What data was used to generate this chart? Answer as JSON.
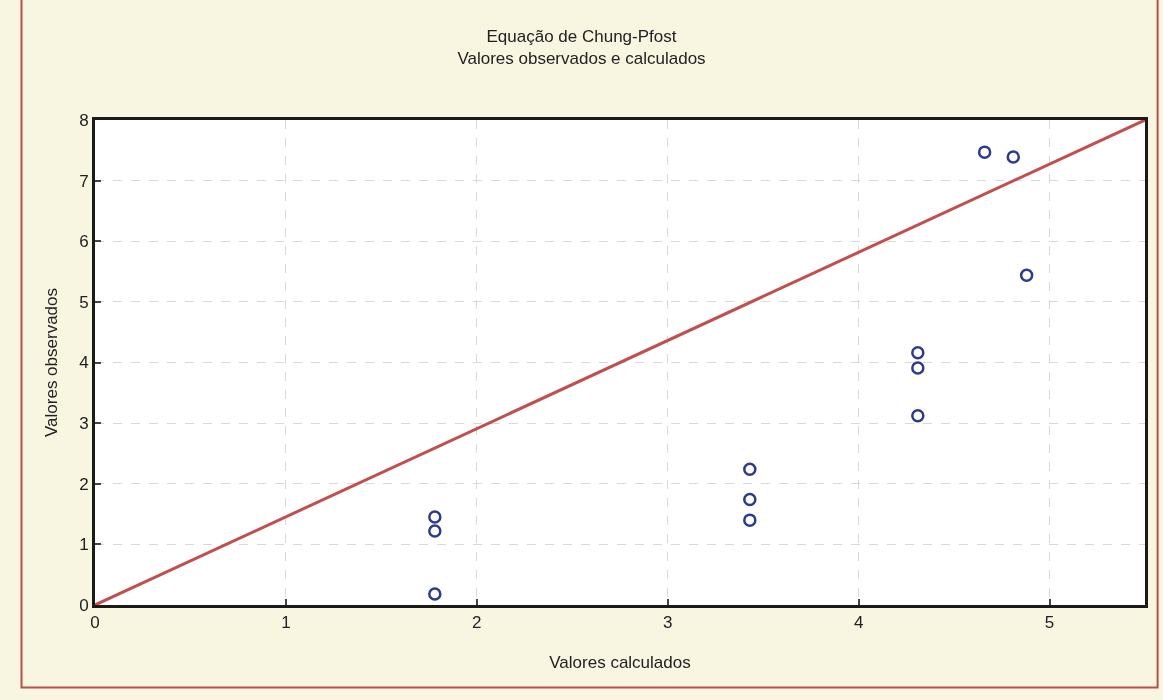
{
  "chart_data": {
    "type": "scatter",
    "title": "Equação de Chung-Pfost",
    "subtitle": "Valores observados e calculados",
    "xlabel": "Valores calculados",
    "ylabel": "Valores observados",
    "xlim": [
      0,
      5.5
    ],
    "ylim": [
      0,
      8
    ],
    "xticks": [
      0,
      1,
      2,
      3,
      4,
      5
    ],
    "yticks": [
      0,
      1,
      2,
      3,
      4,
      5,
      6,
      7,
      8
    ],
    "grid": true,
    "legend": false,
    "series": [
      {
        "marker": "circle",
        "color": "#2e3a8c",
        "x": [
          1.78,
          1.78,
          1.78,
          3.43,
          3.43,
          3.43,
          4.31,
          4.31,
          4.31,
          4.66,
          4.81,
          4.88
        ],
        "values": [
          1.45,
          1.22,
          0.18,
          2.24,
          1.74,
          1.4,
          4.16,
          3.91,
          3.12,
          7.47,
          7.39,
          5.44
        ]
      },
      {
        "type": "line",
        "marker": "none",
        "color": "#c0504d",
        "line_style": "solid",
        "x": [
          0,
          5.5
        ],
        "values": [
          0,
          8
        ]
      }
    ]
  }
}
